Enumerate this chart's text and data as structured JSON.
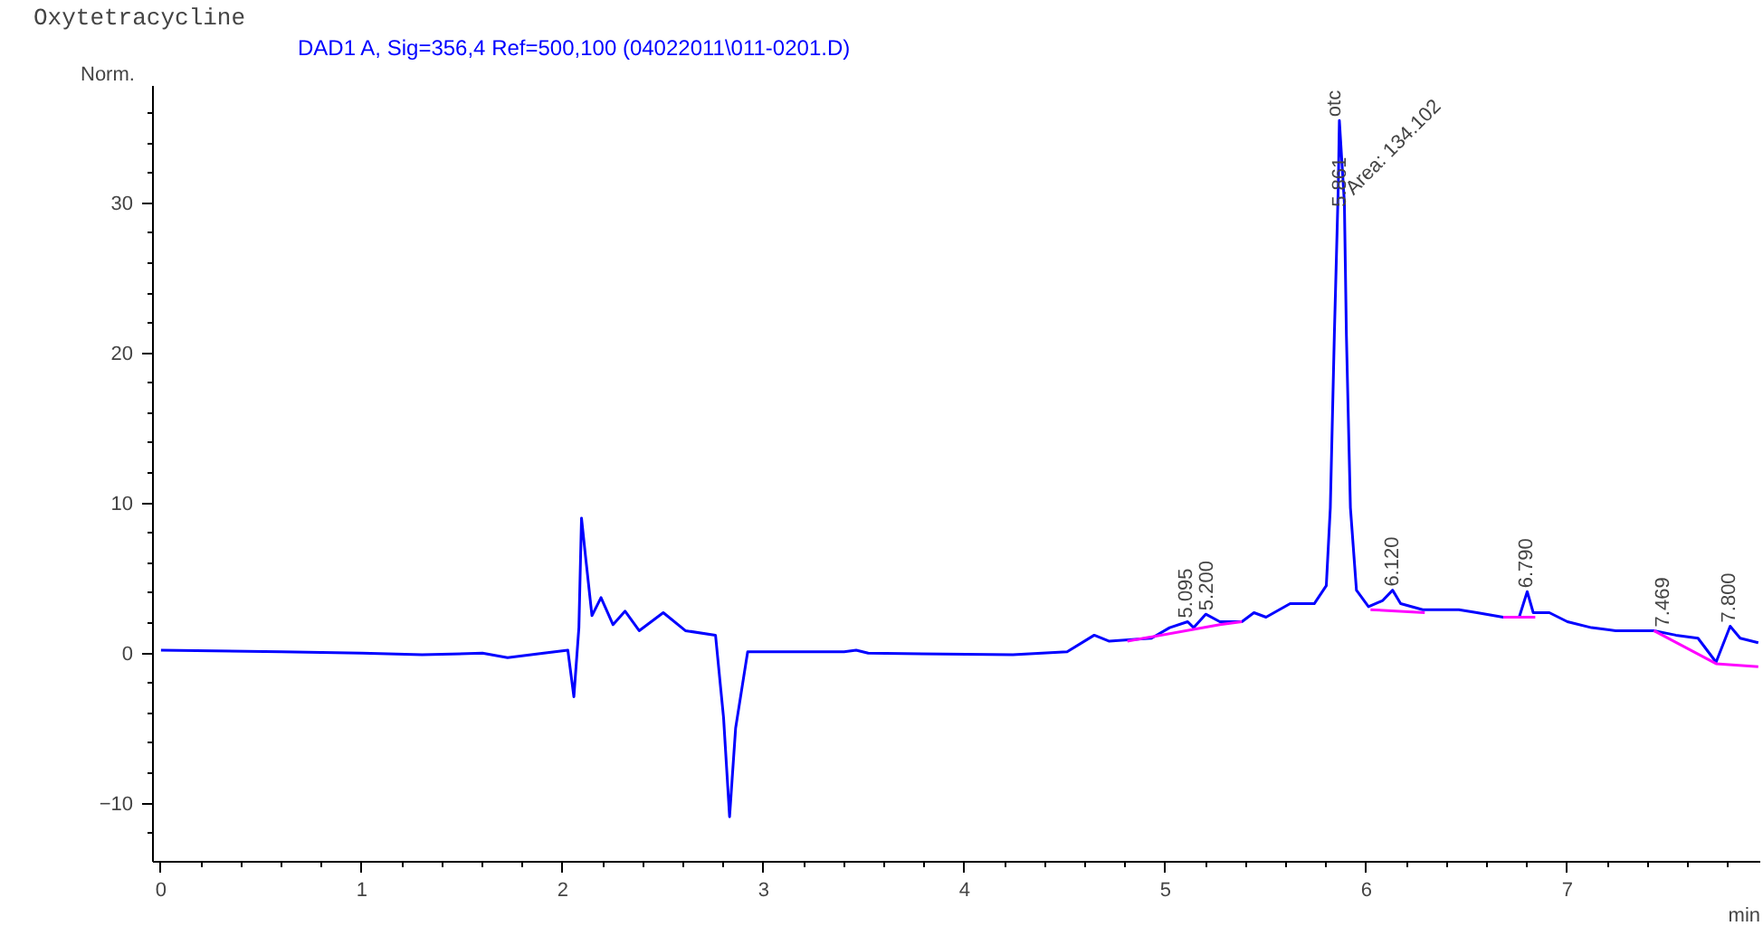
{
  "chart_data": {
    "type": "line",
    "title": "Oxytetracycline",
    "subtitle": "DAD1 A, Sig=356,4 Ref=500,100 (04022011\\011-0201.D)",
    "xlabel": "min",
    "ylabel": "Norm.",
    "xlim": [
      -0.04,
      7.96
    ],
    "ylim": [
      -13.9,
      37.8
    ],
    "xticks": [
      0,
      1,
      2,
      3,
      4,
      5,
      6,
      7
    ],
    "yticks": [
      -10,
      0,
      10,
      20,
      30
    ],
    "grid": false,
    "marker": "none",
    "line_style": "solid",
    "series": [
      {
        "color": "#0000ff",
        "x": [
          0,
          0.6,
          1.0,
          1.3,
          1.6,
          1.725,
          1.905,
          2.025,
          2.055,
          2.08,
          2.093,
          2.115,
          2.145,
          2.19,
          2.25,
          2.31,
          2.38,
          2.5,
          2.61,
          2.76,
          2.8,
          2.83,
          2.86,
          2.92,
          3.4,
          3.46,
          3.52,
          4.24,
          4.51,
          4.645,
          4.72,
          4.93,
          5.02,
          5.11,
          5.14,
          5.2,
          5.27,
          5.38,
          5.44,
          5.5,
          5.62,
          5.74,
          5.8,
          5.82,
          5.84,
          5.86,
          5.865,
          5.89,
          5.9,
          5.92,
          5.95,
          6.01,
          6.08,
          6.13,
          6.17,
          6.28,
          6.46,
          6.55,
          6.68,
          6.76,
          6.8,
          6.83,
          6.91,
          7.0,
          7.12,
          7.24,
          7.43,
          7.54,
          7.65,
          7.74,
          7.81,
          7.86,
          7.95
        ],
        "values": [
          0.2,
          0.1,
          0.0,
          -0.1,
          0.0,
          -0.3,
          0.0,
          0.2,
          -2.9,
          1.7,
          9.0,
          6.2,
          2.5,
          3.7,
          1.9,
          2.8,
          1.5,
          2.7,
          1.5,
          1.2,
          -4.3,
          -10.9,
          -5.0,
          0.1,
          0.1,
          0.2,
          0.0,
          -0.1,
          0.1,
          1.2,
          0.8,
          1.0,
          1.7,
          2.1,
          1.7,
          2.6,
          2.1,
          2.1,
          2.7,
          2.4,
          3.3,
          3.3,
          4.5,
          9.7,
          21.2,
          31.3,
          35.5,
          30.0,
          21.2,
          9.7,
          4.2,
          3.1,
          3.5,
          4.2,
          3.3,
          2.9,
          2.9,
          2.7,
          2.4,
          2.4,
          4.1,
          2.7,
          2.7,
          2.1,
          1.7,
          1.5,
          1.5,
          1.2,
          1.0,
          -0.6,
          1.8,
          1.0,
          0.7
        ]
      },
      {
        "color": "#ff00ff",
        "x": [
          4.81,
          5.27,
          5.38,
          5.39,
          6.02,
          6.29,
          6.3,
          6.68,
          6.84,
          6.85,
          7.43,
          7.74,
          7.95
        ],
        "values": [
          0.8,
          1.9,
          2.1,
          null,
          2.9,
          2.7,
          null,
          2.4,
          2.4,
          null,
          1.5,
          -0.7,
          -0.9
        ]
      }
    ],
    "annotations": [
      {
        "text": "5.095",
        "x": 5.095,
        "y": 2.1
      },
      {
        "text": "5.200",
        "x": 5.2,
        "y": 2.6
      },
      {
        "text": "5.861",
        "x": 5.861,
        "y": 29.5
      },
      {
        "text": "Area: 134.102",
        "x": 5.88,
        "y": 30.5
      },
      {
        "text": "otc",
        "x": 5.861,
        "y": 35.5
      },
      {
        "text": "6.120",
        "x": 6.12,
        "y": 4.2
      },
      {
        "text": "6.790",
        "x": 6.79,
        "y": 4.1
      },
      {
        "text": "7.469",
        "x": 7.469,
        "y": 1.5
      },
      {
        "text": "7.800",
        "x": 7.8,
        "y": 1.8
      }
    ]
  }
}
